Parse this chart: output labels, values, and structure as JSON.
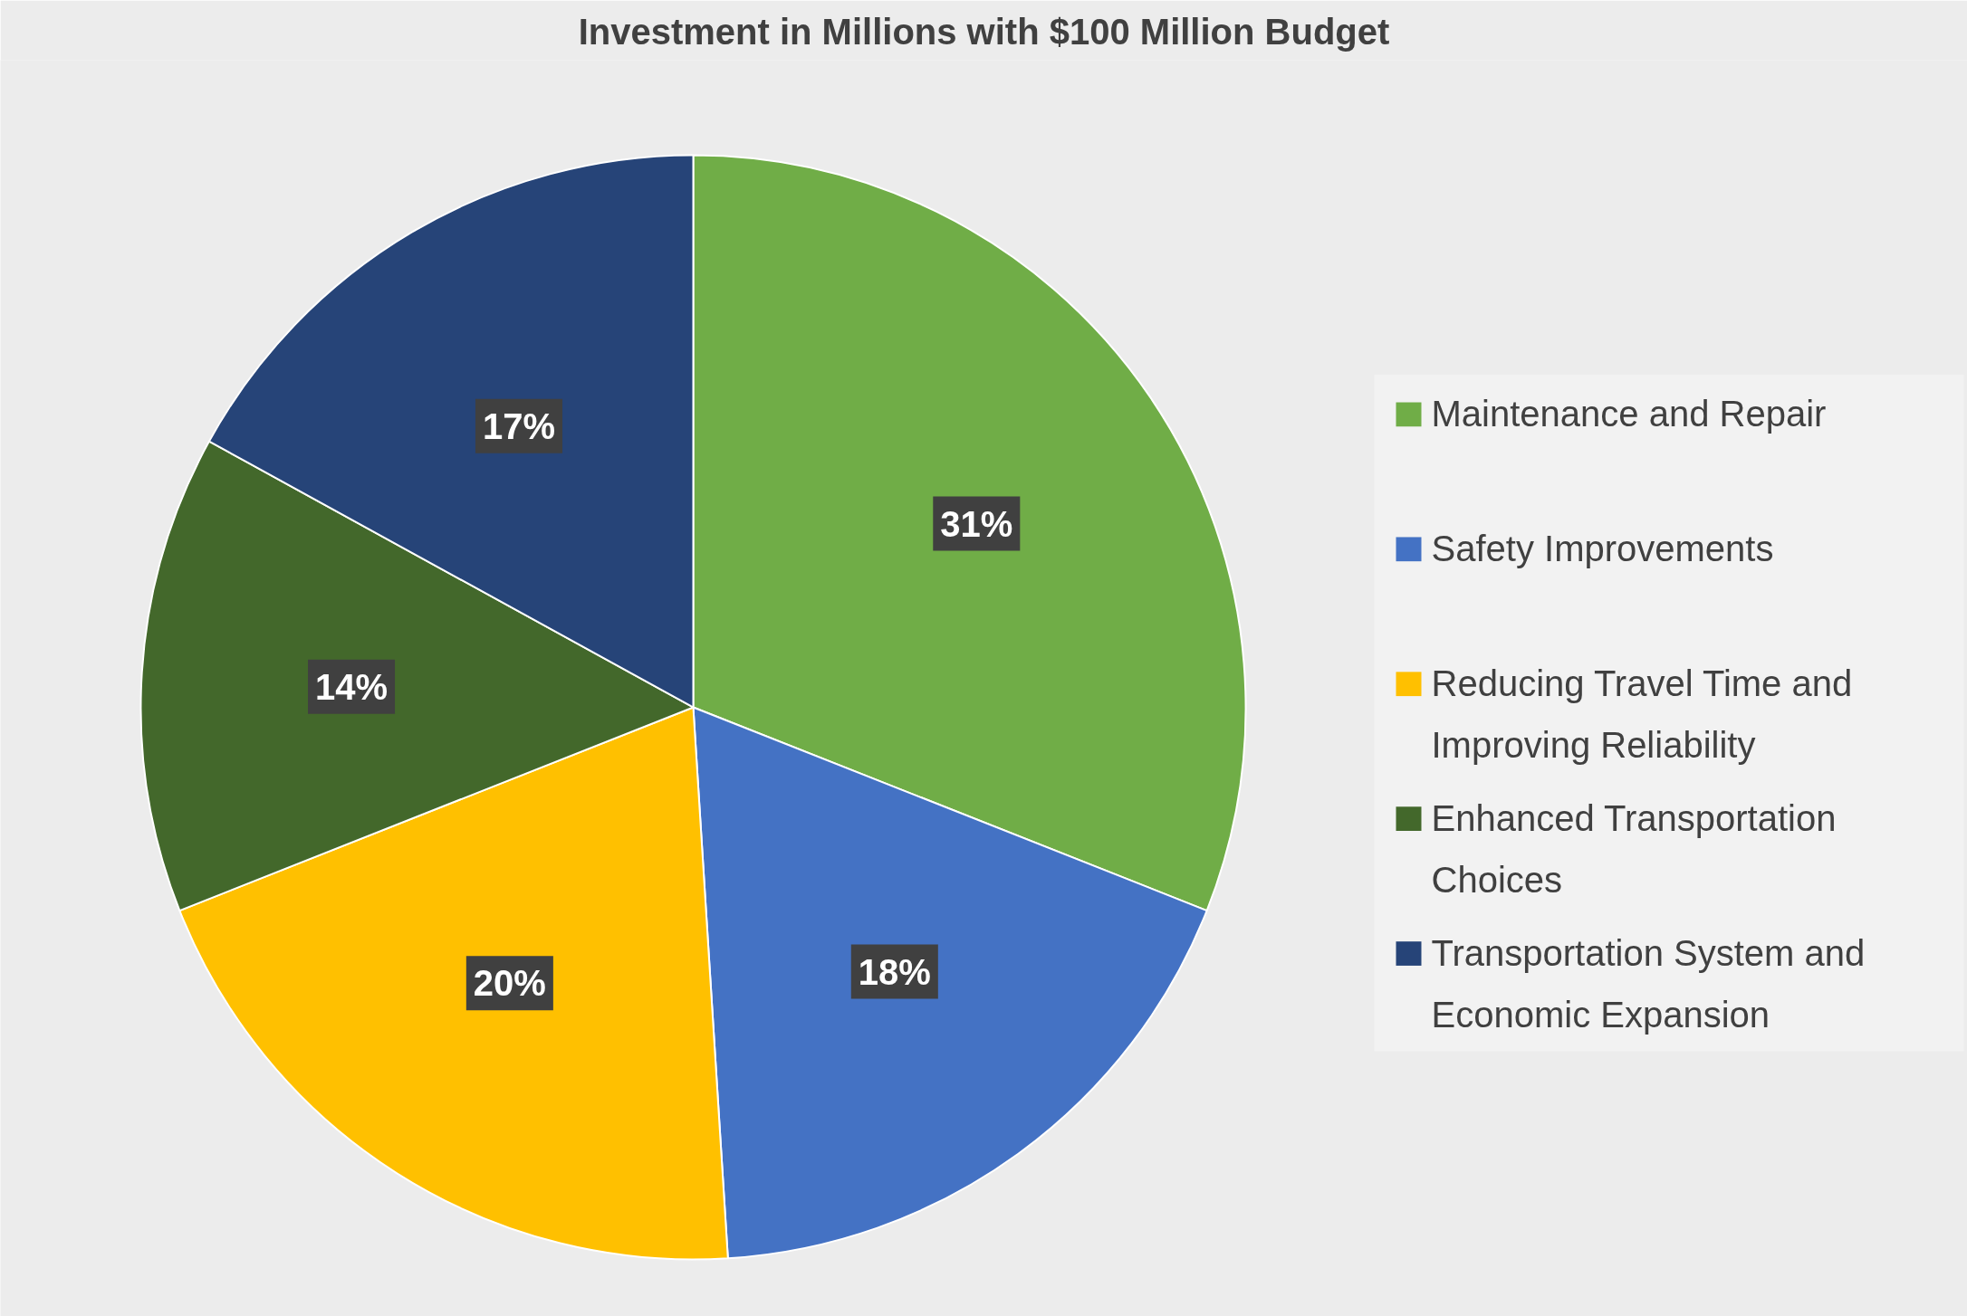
{
  "chart_data": {
    "type": "pie",
    "title": "Investment in Millions with $100 Million Budget",
    "categories": [
      "Maintenance and Repair",
      "Safety Improvements",
      "Reducing Travel Time and Improving Reliability",
      "Enhanced Transportation Choices",
      "Transportation System and Economic Expansion"
    ],
    "values": [
      31,
      18,
      20,
      14,
      17
    ],
    "colors": [
      "#70ad47",
      "#4472c4",
      "#ffc000",
      "#43682b",
      "#264478"
    ],
    "value_labels": [
      "31%",
      "18%",
      "20%",
      "14%",
      "17%"
    ],
    "legend": "right"
  }
}
